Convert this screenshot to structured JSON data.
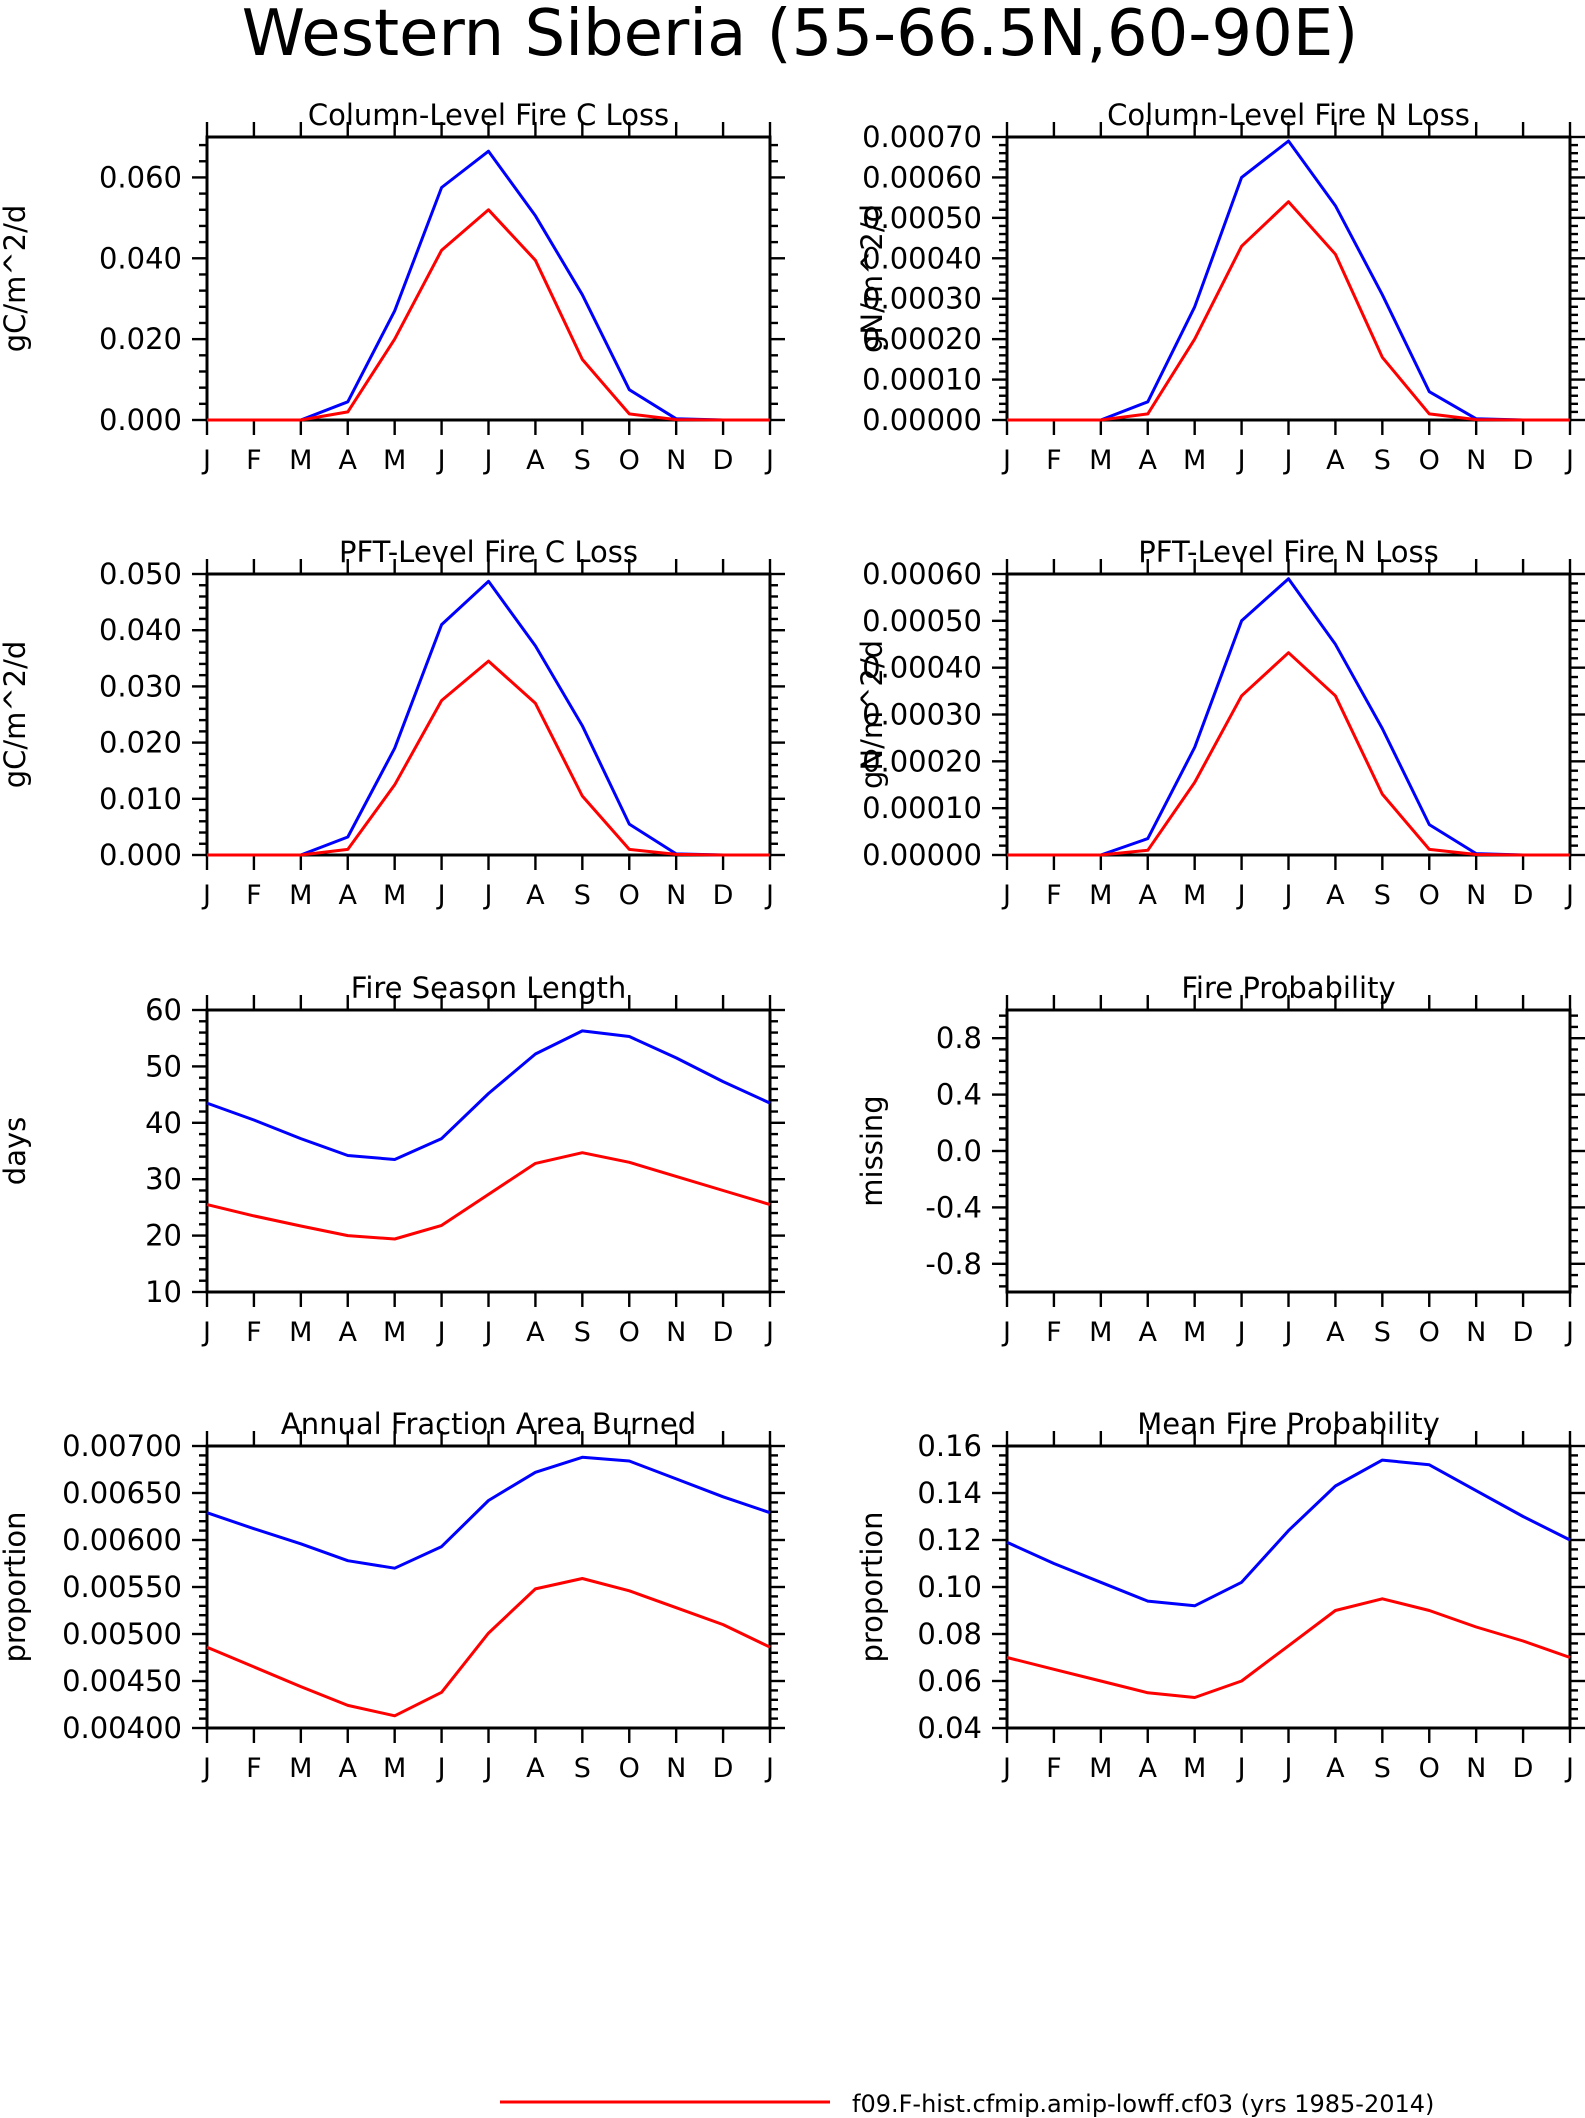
{
  "figure": {
    "title": "Western Siberia (55-66.5N,60-90E)",
    "legend": {
      "label": "f09.F-hist.cfmip.amip-lowff.cf03 (yrs 1985-2014)",
      "color": "#ff0000"
    }
  },
  "chart_data": [
    {
      "type": "line",
      "title": "Column-Level Fire C Loss",
      "ylabel": "gC/m^2/d",
      "categories": [
        "J",
        "F",
        "M",
        "A",
        "M",
        "J",
        "J",
        "A",
        "S",
        "O",
        "N",
        "D",
        "J"
      ],
      "ylim": [
        0,
        0.07
      ],
      "yticks": [
        0,
        0.02,
        0.04,
        0.06
      ],
      "yticklabels": [
        "0.000",
        "0.020",
        "0.040",
        "0.060"
      ],
      "grid": false,
      "series": [
        {
          "color": "#0000ff",
          "values": [
            0,
            0,
            0,
            0.0045,
            0.027,
            0.0575,
            0.0665,
            0.0505,
            0.031,
            0.0075,
            0.0003,
            0,
            0
          ]
        },
        {
          "color": "#ff0000",
          "values": [
            0,
            0,
            0,
            0.002,
            0.02,
            0.042,
            0.052,
            0.0395,
            0.015,
            0.0015,
            0.0001,
            0,
            0
          ]
        }
      ]
    },
    {
      "type": "line",
      "title": "Column-Level Fire N Loss",
      "ylabel": "gN/m^2/d",
      "categories": [
        "J",
        "F",
        "M",
        "A",
        "M",
        "J",
        "J",
        "A",
        "S",
        "O",
        "N",
        "D",
        "J"
      ],
      "ylim": [
        0,
        0.0007
      ],
      "yticks": [
        0,
        0.0001,
        0.0002,
        0.0003,
        0.0004,
        0.0005,
        0.0006,
        0.0007
      ],
      "yticklabels": [
        "0.00000",
        "0.00010",
        "0.00020",
        "0.00030",
        "0.00040",
        "0.00050",
        "0.00060",
        "0.00070"
      ],
      "grid": false,
      "series": [
        {
          "color": "#0000ff",
          "values": [
            0,
            0,
            0,
            4.5e-05,
            0.00028,
            0.0006,
            0.00069,
            0.00053,
            0.00031,
            7e-05,
            3e-06,
            0,
            0
          ]
        },
        {
          "color": "#ff0000",
          "values": [
            0,
            0,
            0,
            1.5e-05,
            0.0002,
            0.00043,
            0.00054,
            0.00041,
            0.000155,
            1.5e-05,
            1e-06,
            0,
            0
          ]
        }
      ]
    },
    {
      "type": "line",
      "title": "PFT-Level Fire C Loss",
      "ylabel": "gC/m^2/d",
      "categories": [
        "J",
        "F",
        "M",
        "A",
        "M",
        "J",
        "J",
        "A",
        "S",
        "O",
        "N",
        "D",
        "J"
      ],
      "ylim": [
        0,
        0.05
      ],
      "yticks": [
        0,
        0.01,
        0.02,
        0.03,
        0.04,
        0.05
      ],
      "yticklabels": [
        "0.000",
        "0.010",
        "0.020",
        "0.030",
        "0.040",
        "0.050"
      ],
      "grid": false,
      "series": [
        {
          "color": "#0000ff",
          "values": [
            0,
            0,
            0,
            0.0032,
            0.019,
            0.041,
            0.0487,
            0.0372,
            0.023,
            0.0055,
            0.0002,
            0,
            0
          ]
        },
        {
          "color": "#ff0000",
          "values": [
            0,
            0,
            0,
            0.001,
            0.0125,
            0.0275,
            0.0345,
            0.027,
            0.0105,
            0.001,
            0.0001,
            0,
            0
          ]
        }
      ]
    },
    {
      "type": "line",
      "title": "PFT-Level Fire N Loss",
      "ylabel": "gN/m^2/d",
      "categories": [
        "J",
        "F",
        "M",
        "A",
        "M",
        "J",
        "J",
        "A",
        "S",
        "O",
        "N",
        "D",
        "J"
      ],
      "ylim": [
        0,
        0.0006
      ],
      "yticks": [
        0,
        0.0001,
        0.0002,
        0.0003,
        0.0004,
        0.0005,
        0.0006
      ],
      "yticklabels": [
        "0.00000",
        "0.00010",
        "0.00020",
        "0.00030",
        "0.00040",
        "0.00050",
        "0.00060"
      ],
      "grid": false,
      "series": [
        {
          "color": "#0000ff",
          "values": [
            0,
            0,
            0,
            3.5e-05,
            0.00023,
            0.0005,
            0.00059,
            0.00045,
            0.00027,
            6.5e-05,
            3e-06,
            0,
            0
          ]
        },
        {
          "color": "#ff0000",
          "values": [
            0,
            0,
            0,
            1e-05,
            0.000155,
            0.00034,
            0.000432,
            0.00034,
            0.00013,
            1.2e-05,
            1e-06,
            0,
            0
          ]
        }
      ]
    },
    {
      "type": "line",
      "title": "Fire Season Length",
      "ylabel": "days",
      "categories": [
        "J",
        "F",
        "M",
        "A",
        "M",
        "J",
        "J",
        "A",
        "S",
        "O",
        "N",
        "D",
        "J"
      ],
      "ylim": [
        10,
        60
      ],
      "yticks": [
        10,
        20,
        30,
        40,
        50,
        60
      ],
      "yticklabels": [
        "10",
        "20",
        "30",
        "40",
        "50",
        "60"
      ],
      "grid": false,
      "series": [
        {
          "color": "#0000ff",
          "values": [
            43.5,
            40.5,
            37.2,
            34.2,
            33.5,
            37.2,
            45.2,
            52.2,
            56.3,
            55.3,
            51.5,
            47.3,
            43.5
          ]
        },
        {
          "color": "#ff0000",
          "values": [
            25.5,
            23.5,
            21.7,
            20.0,
            19.4,
            21.8,
            27.3,
            32.8,
            34.7,
            33.0,
            30.5,
            28.0,
            25.5
          ]
        }
      ]
    },
    {
      "type": "line",
      "title": "Fire Probability",
      "ylabel": "missing",
      "categories": [
        "J",
        "F",
        "M",
        "A",
        "M",
        "J",
        "J",
        "A",
        "S",
        "O",
        "N",
        "D",
        "J"
      ],
      "ylim": [
        -1,
        1
      ],
      "yticks": [
        -0.8,
        -0.4,
        0,
        0.4,
        0.8
      ],
      "yticklabels": [
        "-0.8",
        "-0.4",
        "0.0",
        "0.4",
        "0.8"
      ],
      "grid": false,
      "series": []
    },
    {
      "type": "line",
      "title": "Annual Fraction Area Burned",
      "ylabel": "proportion",
      "categories": [
        "J",
        "F",
        "M",
        "A",
        "M",
        "J",
        "J",
        "A",
        "S",
        "O",
        "N",
        "D",
        "J"
      ],
      "ylim": [
        0.004,
        0.007
      ],
      "yticks": [
        0.004,
        0.0045,
        0.005,
        0.0055,
        0.006,
        0.0065,
        0.007
      ],
      "yticklabels": [
        "0.00400",
        "0.00450",
        "0.00500",
        "0.00550",
        "0.00600",
        "0.00650",
        "0.00700"
      ],
      "grid": false,
      "series": [
        {
          "color": "#0000ff",
          "values": [
            0.00629,
            0.00612,
            0.00596,
            0.00578,
            0.0057,
            0.00593,
            0.00642,
            0.00672,
            0.00688,
            0.00684,
            0.00665,
            0.00646,
            0.00629
          ]
        },
        {
          "color": "#ff0000",
          "values": [
            0.00486,
            0.00465,
            0.00444,
            0.00424,
            0.00413,
            0.00438,
            0.00501,
            0.00548,
            0.00559,
            0.00546,
            0.00528,
            0.0051,
            0.00486
          ]
        }
      ]
    },
    {
      "type": "line",
      "title": "Mean Fire Probability",
      "ylabel": "proportion",
      "categories": [
        "J",
        "F",
        "M",
        "A",
        "M",
        "J",
        "J",
        "A",
        "S",
        "O",
        "N",
        "D",
        "J"
      ],
      "ylim": [
        0.04,
        0.16
      ],
      "yticks": [
        0.04,
        0.06,
        0.08,
        0.1,
        0.12,
        0.14,
        0.16
      ],
      "yticklabels": [
        "0.04",
        "0.06",
        "0.08",
        "0.10",
        "0.12",
        "0.14",
        "0.16"
      ],
      "grid": false,
      "series": [
        {
          "color": "#0000ff",
          "values": [
            0.119,
            0.11,
            0.102,
            0.094,
            0.092,
            0.102,
            0.124,
            0.143,
            0.154,
            0.152,
            0.141,
            0.13,
            0.12
          ]
        },
        {
          "color": "#ff0000",
          "values": [
            0.07,
            0.065,
            0.06,
            0.055,
            0.053,
            0.06,
            0.075,
            0.09,
            0.095,
            0.09,
            0.083,
            0.077,
            0.07
          ]
        }
      ]
    }
  ]
}
